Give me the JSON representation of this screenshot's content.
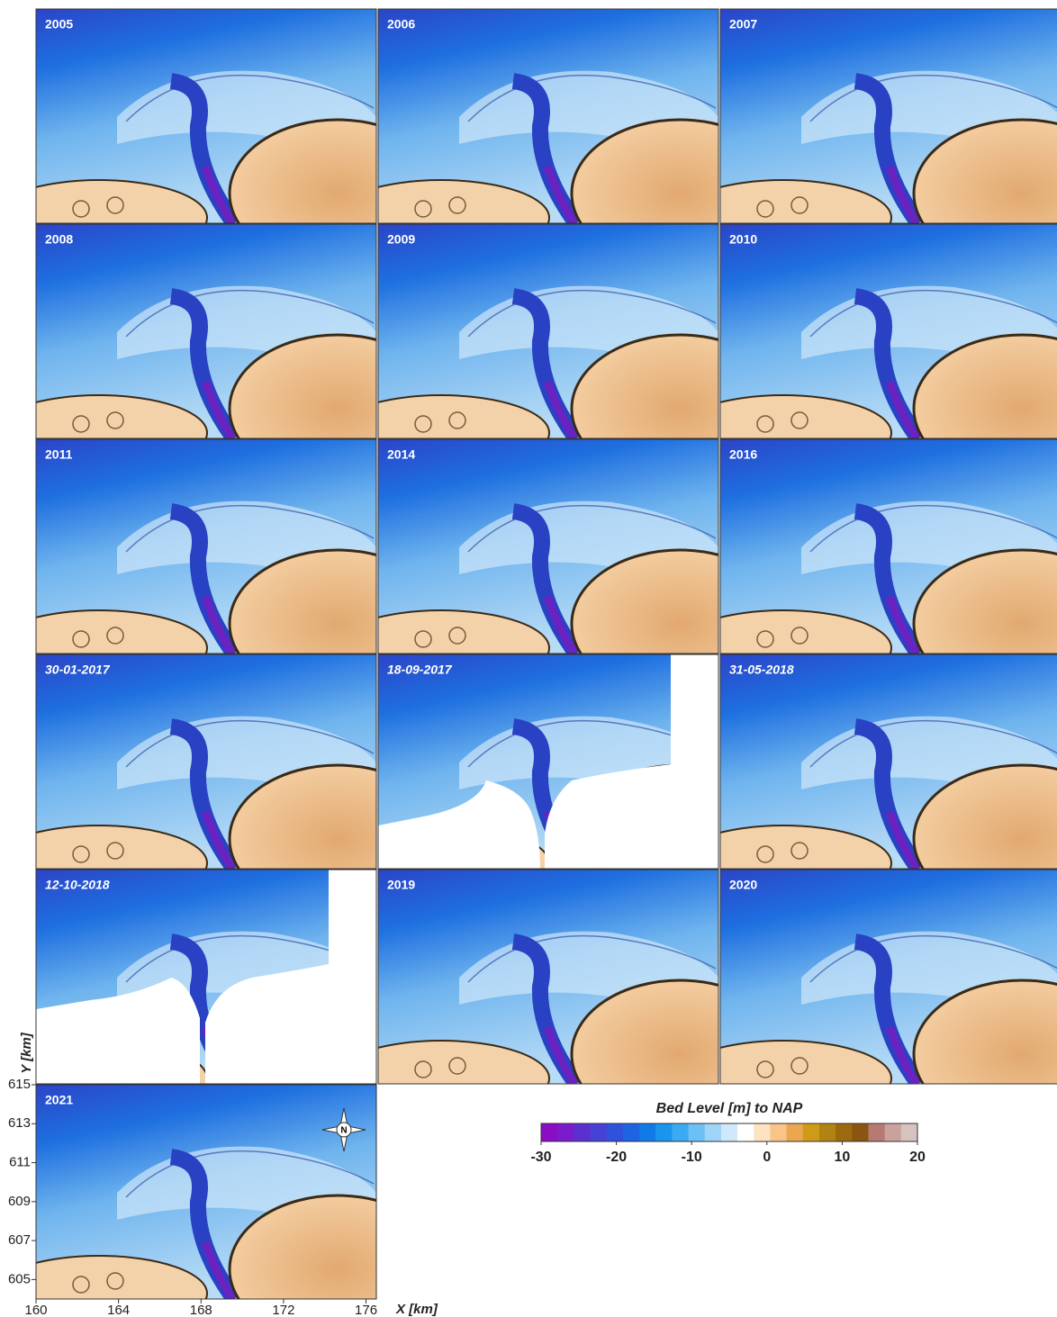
{
  "panels": [
    {
      "label": "2005"
    },
    {
      "label": "2006"
    },
    {
      "label": "2007"
    },
    {
      "label": "2008"
    },
    {
      "label": "2009"
    },
    {
      "label": "2010"
    },
    {
      "label": "2011"
    },
    {
      "label": "2014"
    },
    {
      "label": "2016"
    },
    {
      "label": "30-01-2017"
    },
    {
      "label": "18-09-2017"
    },
    {
      "label": "31-05-2018"
    },
    {
      "label": "12-10-2018"
    },
    {
      "label": "2019"
    },
    {
      "label": "2020"
    },
    {
      "label": "2021"
    }
  ],
  "colorbar": {
    "title": "Bed Level  [m] to NAP",
    "lim": [
      -30,
      20
    ],
    "ticks": [
      -30,
      -20,
      -10,
      0,
      10,
      20
    ],
    "colors": [
      "#8a0cc4",
      "#7a1ccc",
      "#5a30d0",
      "#4642d6",
      "#2f52dc",
      "#1d63e2",
      "#127ae8",
      "#1a95ee",
      "#3aabf2",
      "#6cc0f5",
      "#9fd4f7",
      "#cfe9fb",
      "#ffffff",
      "#fde3c2",
      "#f8c489",
      "#eaa750",
      "#cf9a18",
      "#b08312",
      "#9b6a10",
      "#8a5510",
      "#b57a72",
      "#c9a29e",
      "#d8c2c0"
    ]
  },
  "x_axis": {
    "label": "X [km]",
    "lim": [
      160,
      176.5
    ],
    "ticks": [
      160,
      164,
      168,
      172,
      176
    ]
  },
  "y_axis": {
    "label": "Y [km]",
    "lim": [
      604,
      615
    ],
    "ticks": [
      615,
      613,
      611,
      609,
      607,
      605
    ]
  },
  "compass": "N"
}
